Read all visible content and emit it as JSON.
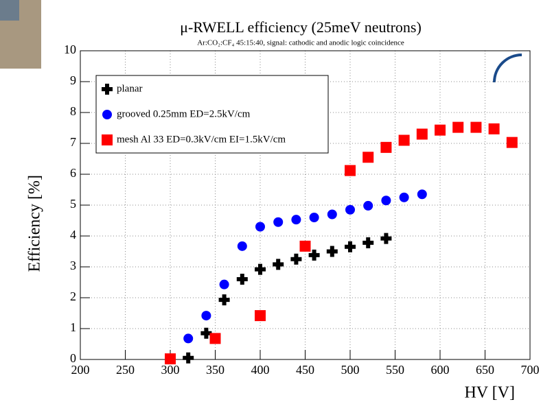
{
  "chart_data": {
    "type": "scatter",
    "title": "μ-RWELL efficiency (25meV neutrons)",
    "subtitle": "Ar:CO₂:CF₄ 45:15:40, signal: cathodic and anodic logic coincidence",
    "x_label": "HV [V]",
    "y_label": "Efficiency [%]",
    "xlim": [
      200,
      700
    ],
    "xticks": [
      200,
      250,
      300,
      350,
      400,
      450,
      500,
      550,
      600,
      650,
      700
    ],
    "ylim": [
      0,
      10
    ],
    "yticks": [
      0,
      1,
      2,
      3,
      4,
      5,
      6,
      7,
      8,
      9,
      10
    ],
    "grid": true,
    "legend": "upper left",
    "series": [
      {
        "name": "planar",
        "color": "#000000",
        "marker": "cross",
        "x": [
          320,
          340,
          360,
          380,
          400,
          420,
          440,
          460,
          480,
          500,
          520,
          540
        ],
        "values": [
          0.05,
          0.85,
          1.93,
          2.6,
          2.92,
          3.08,
          3.25,
          3.38,
          3.5,
          3.65,
          3.78,
          3.92
        ]
      },
      {
        "name": "grooved 0.25mm ED=2.5kV/cm",
        "color": "#0000ff",
        "marker": "circle",
        "x": [
          320,
          340,
          360,
          380,
          400,
          420,
          440,
          460,
          480,
          500,
          520,
          540,
          560,
          580
        ],
        "values": [
          0.68,
          1.42,
          2.43,
          3.67,
          4.3,
          4.45,
          4.53,
          4.6,
          4.7,
          4.85,
          4.98,
          5.15,
          5.25,
          5.35
        ]
      },
      {
        "name": "mesh  Al 33 ED=0.3kV/cm EI=1.5kV/cm",
        "color": "#ff0000",
        "marker": "square",
        "x": [
          300,
          350,
          400,
          450,
          500,
          520,
          540,
          560,
          580,
          600,
          620,
          640,
          660,
          680
        ],
        "values": [
          0.02,
          0.68,
          1.42,
          3.67,
          6.12,
          6.55,
          6.87,
          7.1,
          7.3,
          7.43,
          7.52,
          7.52,
          7.47,
          7.03
        ]
      }
    ]
  }
}
